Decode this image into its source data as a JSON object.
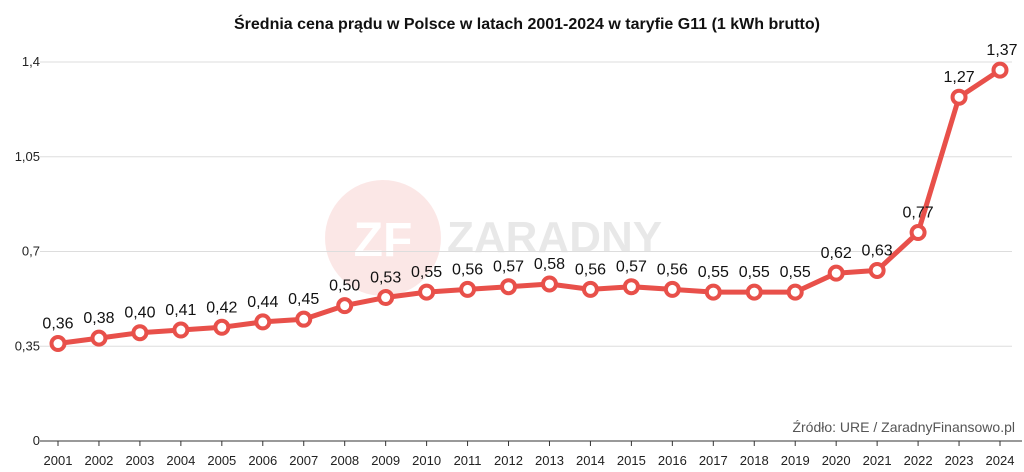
{
  "chart_data": {
    "type": "line",
    "title": "Średnia cena prądu w Polsce w latach 2001-2024 w taryfie G11 (1 kWh brutto)",
    "xlabel": "",
    "ylabel": "",
    "categories": [
      "2001",
      "2002",
      "2003",
      "2004",
      "2005",
      "2006",
      "2007",
      "2008",
      "2009",
      "2010",
      "2011",
      "2012",
      "2013",
      "2014",
      "2015",
      "2016",
      "2017",
      "2018",
      "2019",
      "2020",
      "2021",
      "2022",
      "2023",
      "2024"
    ],
    "series": [
      {
        "values": [
          0.36,
          0.38,
          0.4,
          0.41,
          0.42,
          0.44,
          0.45,
          0.5,
          0.53,
          0.55,
          0.56,
          0.57,
          0.58,
          0.56,
          0.57,
          0.56,
          0.55,
          0.55,
          0.55,
          0.62,
          0.63,
          0.77,
          1.27,
          1.37
        ],
        "labels": [
          "0,36",
          "0,38",
          "0,40",
          "0,41",
          "0,42",
          "0,44",
          "0,45",
          "0,50",
          "0,53",
          "0,55",
          "0,56",
          "0,57",
          "0,58",
          "0,56",
          "0,57",
          "0,56",
          "0,55",
          "0,55",
          "0,55",
          "0,62",
          "0,63",
          "0,77",
          "1,27",
          "1,37"
        ]
      }
    ],
    "ylim": [
      0,
      1.4
    ],
    "yticks": [
      0,
      0.35,
      0.7,
      1.05,
      1.4
    ],
    "ytick_labels": [
      "0",
      "0,35",
      "0,7",
      "1,05",
      "1,4"
    ],
    "grid": true,
    "source": "Źródło: URE / ZaradnyFinansowo.pl",
    "line_color": "#e8504a",
    "grid_color": "#dddddd"
  },
  "watermark": {
    "mark": "ZF",
    "brand": "ZARADNY"
  }
}
